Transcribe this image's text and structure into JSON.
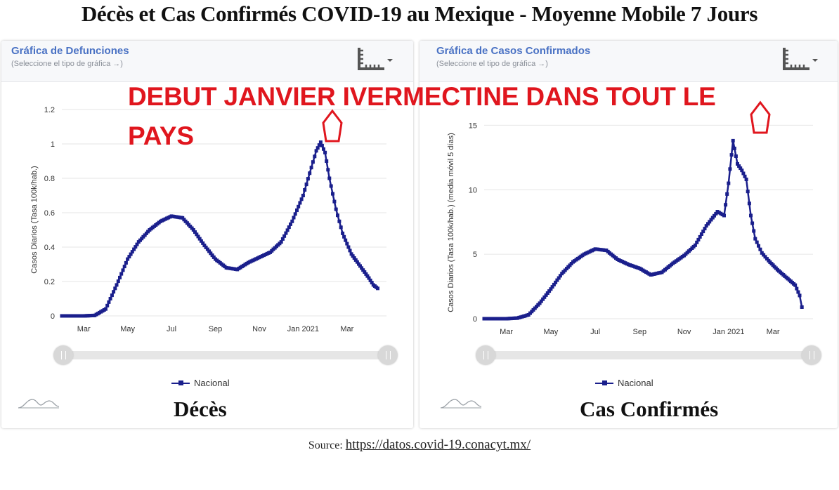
{
  "title": "Décès et Cas Confirmés COVID-19 au Mexique - Moyenne Mobile 7 Jours",
  "annotation": "DEBUT JANVIER IVERMECTINE DANS TOUT LE PAYS",
  "source_prefix": "Source:",
  "source_link": "https://datos.covid-19.conacyt.mx/",
  "colors": {
    "series": "#1a1f8c",
    "annotation": "#e0161e",
    "header_title": "#4a72c4"
  },
  "icons": {
    "chart_type": "chart-type-icon",
    "logo": "conacyt-logo-icon"
  },
  "chart_data": [
    {
      "type": "line",
      "panel_title": "Gráfica de Defunciones",
      "panel_subtitle": "(Seleccione el tipo de gráfica →)",
      "caption": "Décès",
      "ylabel": "Casos Diarios (Tasa 100k/hab.)",
      "ylim": [
        0,
        1.2
      ],
      "yticks": [
        0,
        0.2,
        0.4,
        0.6,
        0.8,
        1,
        1.2
      ],
      "ytick_labels": [
        "0",
        "0.2",
        "0.4",
        "0.6",
        "0.8",
        "1",
        "1.2"
      ],
      "xlim": [
        0,
        14.8
      ],
      "xticks": [
        {
          "label": "Mar",
          "x": 1
        },
        {
          "label": "May",
          "x": 3
        },
        {
          "label": "Jul",
          "x": 5
        },
        {
          "label": "Sep",
          "x": 7
        },
        {
          "label": "Nov",
          "x": 9
        },
        {
          "label": "Jan 2021",
          "x": 11
        },
        {
          "label": "Mar",
          "x": 13
        }
      ],
      "legend": "Nacional",
      "series": [
        {
          "name": "Nacional",
          "points": [
            [
              0,
              0
            ],
            [
              0.5,
              0
            ],
            [
              1,
              0
            ],
            [
              1.5,
              0.003
            ],
            [
              2,
              0.04
            ],
            [
              2.5,
              0.18
            ],
            [
              3,
              0.33
            ],
            [
              3.5,
              0.43
            ],
            [
              4,
              0.5
            ],
            [
              4.5,
              0.55
            ],
            [
              5,
              0.58
            ],
            [
              5.5,
              0.57
            ],
            [
              6,
              0.5
            ],
            [
              6.5,
              0.41
            ],
            [
              7,
              0.33
            ],
            [
              7.5,
              0.28
            ],
            [
              8,
              0.27
            ],
            [
              8.5,
              0.31
            ],
            [
              9,
              0.34
            ],
            [
              9.5,
              0.37
            ],
            [
              10,
              0.43
            ],
            [
              10.5,
              0.55
            ],
            [
              11,
              0.7
            ],
            [
              11.3,
              0.83
            ],
            [
              11.6,
              0.96
            ],
            [
              11.8,
              1.01
            ],
            [
              12,
              0.95
            ],
            [
              12.2,
              0.8
            ],
            [
              12.5,
              0.62
            ],
            [
              12.8,
              0.48
            ],
            [
              13.2,
              0.36
            ],
            [
              13.6,
              0.29
            ],
            [
              14,
              0.22
            ],
            [
              14.2,
              0.18
            ],
            [
              14.4,
              0.16
            ]
          ]
        }
      ]
    },
    {
      "type": "line",
      "panel_title": "Gráfica de Casos Confirmados",
      "panel_subtitle": "(Seleccione el tipo de gráfica →)",
      "caption": "Cas Confirmés",
      "ylabel": "Casos Diarios (Tasa 100k/hab.) (media móvil 5 días)",
      "ylim": [
        0,
        16
      ],
      "yticks": [
        0,
        5,
        10,
        15
      ],
      "ytick_labels": [
        "0",
        "5",
        "10",
        "15"
      ],
      "xlim": [
        0,
        14.8
      ],
      "xticks": [
        {
          "label": "Mar",
          "x": 1
        },
        {
          "label": "May",
          "x": 3
        },
        {
          "label": "Jul",
          "x": 5
        },
        {
          "label": "Sep",
          "x": 7
        },
        {
          "label": "Nov",
          "x": 9
        },
        {
          "label": "Jan 2021",
          "x": 11
        },
        {
          "label": "Mar",
          "x": 13
        }
      ],
      "legend": "Nacional",
      "series": [
        {
          "name": "Nacional",
          "points": [
            [
              0,
              0
            ],
            [
              0.5,
              0
            ],
            [
              1,
              0
            ],
            [
              1.5,
              0.05
            ],
            [
              2,
              0.3
            ],
            [
              2.5,
              1.2
            ],
            [
              3,
              2.3
            ],
            [
              3.5,
              3.5
            ],
            [
              4,
              4.4
            ],
            [
              4.5,
              5.0
            ],
            [
              5,
              5.4
            ],
            [
              5.5,
              5.3
            ],
            [
              6,
              4.6
            ],
            [
              6.5,
              4.2
            ],
            [
              7,
              3.9
            ],
            [
              7.5,
              3.4
            ],
            [
              8,
              3.6
            ],
            [
              8.5,
              4.3
            ],
            [
              9,
              4.9
            ],
            [
              9.5,
              5.7
            ],
            [
              10,
              7.2
            ],
            [
              10.5,
              8.3
            ],
            [
              10.8,
              8.0
            ],
            [
              11,
              10.5
            ],
            [
              11.2,
              13.8
            ],
            [
              11.4,
              12.0
            ],
            [
              11.6,
              11.5
            ],
            [
              11.8,
              10.8
            ],
            [
              12,
              8.0
            ],
            [
              12.2,
              6.2
            ],
            [
              12.5,
              5.1
            ],
            [
              12.8,
              4.5
            ],
            [
              13.2,
              3.8
            ],
            [
              13.6,
              3.2
            ],
            [
              14,
              2.6
            ],
            [
              14.2,
              1.8
            ],
            [
              14.3,
              0.9
            ]
          ]
        }
      ]
    }
  ]
}
